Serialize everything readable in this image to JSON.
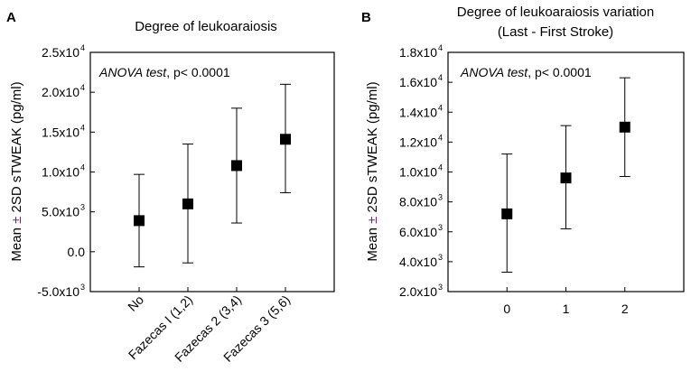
{
  "chart_data": [
    {
      "type": "scatter",
      "panel": "A",
      "title": "Degree of leukoaraiosis",
      "ylabel_prefix": "Mean ",
      "ylabel_pm": "±",
      "ylabel_suffix": " 2SD sTWEAK (pg/ml)",
      "annotation_italic": "ANOVA test",
      "annotation_rest": ", p< 0.0001",
      "categories": [
        "No",
        "Fazecas I (1,2)",
        "Fazecas 2 (3,4)",
        "Fazecas 3 (5,6)"
      ],
      "values": [
        3900,
        6000,
        10800,
        14100
      ],
      "err_low": [
        -1900,
        -1400,
        3600,
        7400
      ],
      "err_high": [
        9700,
        13500,
        18000,
        21000
      ],
      "ylim": [
        -5000,
        25000
      ],
      "yticks": [
        {
          "value": -5000,
          "mant": "-5.0x10",
          "exp": "3"
        },
        {
          "value": 0,
          "mant": "0.0",
          "exp": ""
        },
        {
          "value": 5000,
          "mant": "5.0x10",
          "exp": "3"
        },
        {
          "value": 10000,
          "mant": "1.0x10",
          "exp": "4"
        },
        {
          "value": 15000,
          "mant": "1.5x10",
          "exp": "4"
        },
        {
          "value": 20000,
          "mant": "2.0x10",
          "exp": "4"
        },
        {
          "value": 25000,
          "mant": "2.5x10",
          "exp": "4"
        }
      ],
      "marker_color": "#000000"
    },
    {
      "type": "scatter",
      "panel": "B",
      "title_line1": "Degree of leukoaraiosis variation",
      "title_line2": "(Last - First Stroke)",
      "ylabel_prefix": "Mean ",
      "ylabel_pm": "±",
      "ylabel_suffix": " 2SD sTWEAK (pg/ml)",
      "annotation_italic": "ANOVA test",
      "annotation_rest": ", p< 0.0001",
      "categories": [
        "0",
        "1",
        "2"
      ],
      "values": [
        7200,
        9600,
        13000
      ],
      "err_low": [
        3300,
        6200,
        9700
      ],
      "err_high": [
        11200,
        13100,
        16300
      ],
      "ylim": [
        2000,
        18000
      ],
      "yticks": [
        {
          "value": 2000,
          "mant": "2.0x10",
          "exp": "3"
        },
        {
          "value": 4000,
          "mant": "4.0x10",
          "exp": "3"
        },
        {
          "value": 6000,
          "mant": "6.0x10",
          "exp": "3"
        },
        {
          "value": 8000,
          "mant": "8.0x10",
          "exp": "3"
        },
        {
          "value": 10000,
          "mant": "1.0x10",
          "exp": "4"
        },
        {
          "value": 12000,
          "mant": "1.2x10",
          "exp": "4"
        },
        {
          "value": 14000,
          "mant": "1.4x10",
          "exp": "4"
        },
        {
          "value": 16000,
          "mant": "1.6x10",
          "exp": "4"
        },
        {
          "value": 18000,
          "mant": "1.8x10",
          "exp": "4"
        }
      ],
      "marker_color": "#000000"
    }
  ]
}
